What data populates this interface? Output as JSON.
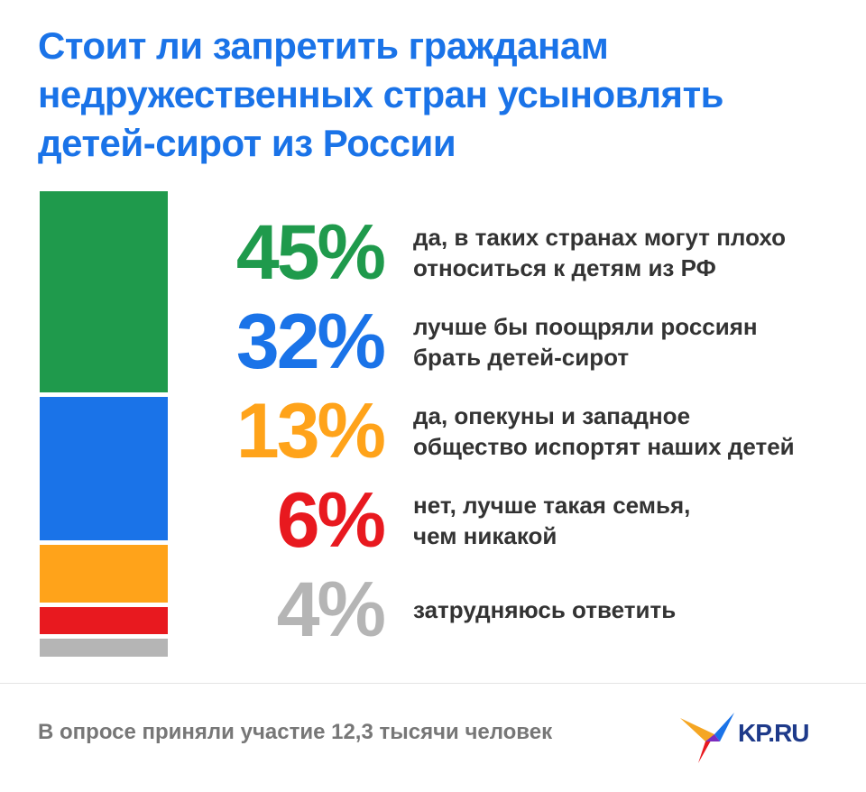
{
  "chart_data": {
    "type": "bar",
    "stacked": true,
    "title": "Стоит ли запретить гражданам\nнедружественных стран усыновлять\nдетей-сирот из России",
    "categories": [
      "да, в таких странах могут плохо\nотноситься к детям из РФ",
      "лучше бы поощряли россиян\nбрать детей-сирот",
      "да, опекуны и западное\nобщество испортят наших детей",
      "нет, лучше такая семья,\nчем никакой",
      "затрудняюсь ответить"
    ],
    "values": [
      45,
      32,
      13,
      6,
      4
    ],
    "value_labels": [
      "45%",
      "32%",
      "13%",
      "6%",
      "4%"
    ],
    "colors": [
      "#1f9a4c",
      "#1a73e8",
      "#ffa31a",
      "#e8191f",
      "#b5b5b5"
    ]
  },
  "footer": {
    "note": "В опросе приняли участие 12,3 тысячи человек",
    "logo": "KP.RU"
  }
}
